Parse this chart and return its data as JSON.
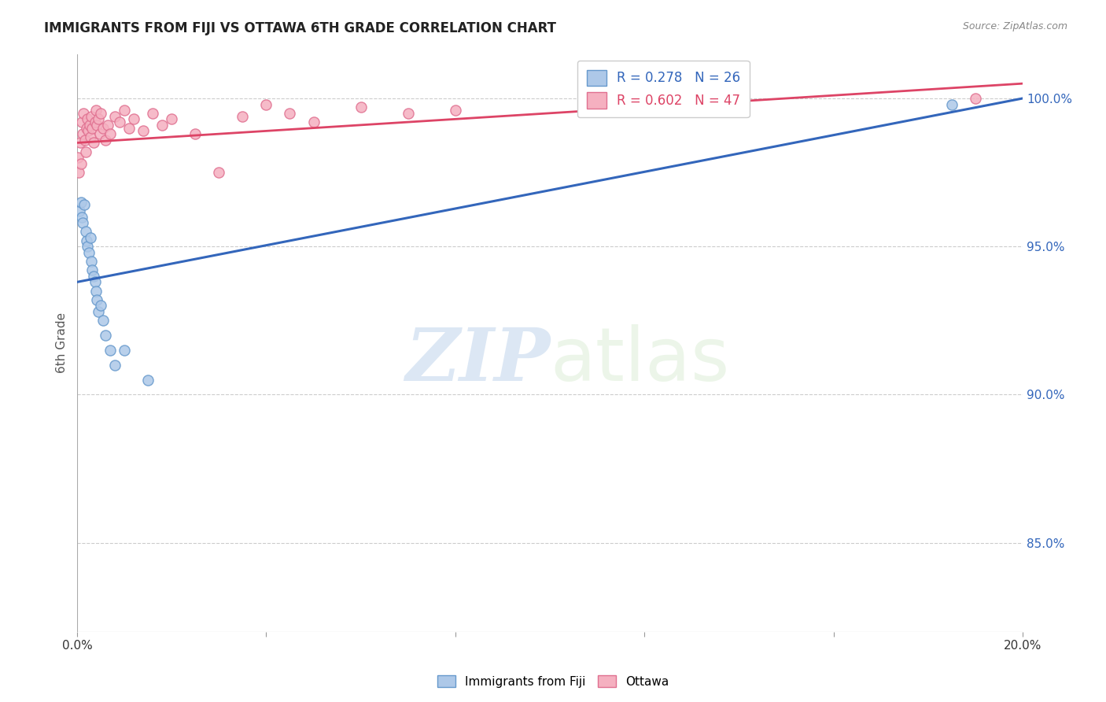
{
  "title": "IMMIGRANTS FROM FIJI VS OTTAWA 6TH GRADE CORRELATION CHART",
  "source": "Source: ZipAtlas.com",
  "ylabel": "6th Grade",
  "y_ticks": [
    100.0,
    95.0,
    90.0,
    85.0
  ],
  "y_tick_labels": [
    "100.0%",
    "95.0%",
    "90.0%",
    "85.0%"
  ],
  "xlim": [
    0.0,
    20.0
  ],
  "ylim": [
    82.0,
    101.5
  ],
  "fiji_R": 0.278,
  "fiji_N": 26,
  "ottawa_R": 0.602,
  "ottawa_N": 47,
  "fiji_color": "#adc8e8",
  "fiji_edge_color": "#6699cc",
  "ottawa_color": "#f5b0c0",
  "ottawa_edge_color": "#e07090",
  "fiji_line_color": "#3366bb",
  "ottawa_line_color": "#dd4466",
  "fiji_x": [
    0.05,
    0.08,
    0.1,
    0.12,
    0.15,
    0.18,
    0.2,
    0.22,
    0.25,
    0.28,
    0.3,
    0.32,
    0.35,
    0.38,
    0.4,
    0.42,
    0.45,
    0.5,
    0.55,
    0.6,
    0.7,
    0.8,
    1.0,
    1.5,
    11.0,
    18.5
  ],
  "fiji_y": [
    96.2,
    96.5,
    96.0,
    95.8,
    96.4,
    95.5,
    95.2,
    95.0,
    94.8,
    95.3,
    94.5,
    94.2,
    94.0,
    93.8,
    93.5,
    93.2,
    92.8,
    93.0,
    92.5,
    92.0,
    91.5,
    91.0,
    91.5,
    90.5,
    100.0,
    99.8
  ],
  "ottawa_x": [
    0.02,
    0.04,
    0.06,
    0.08,
    0.1,
    0.12,
    0.14,
    0.16,
    0.18,
    0.2,
    0.22,
    0.24,
    0.26,
    0.28,
    0.3,
    0.32,
    0.35,
    0.38,
    0.4,
    0.42,
    0.45,
    0.48,
    0.5,
    0.55,
    0.6,
    0.65,
    0.7,
    0.8,
    0.9,
    1.0,
    1.1,
    1.2,
    1.4,
    1.6,
    1.8,
    2.0,
    2.5,
    3.0,
    3.5,
    4.0,
    4.5,
    5.0,
    6.0,
    7.0,
    8.0,
    11.0,
    19.0
  ],
  "ottawa_y": [
    98.0,
    97.5,
    98.5,
    97.8,
    99.2,
    98.8,
    99.5,
    98.6,
    98.2,
    99.0,
    99.3,
    98.9,
    99.1,
    98.7,
    99.4,
    99.0,
    98.5,
    99.2,
    99.6,
    99.1,
    99.3,
    98.8,
    99.5,
    99.0,
    98.6,
    99.1,
    98.8,
    99.4,
    99.2,
    99.6,
    99.0,
    99.3,
    98.9,
    99.5,
    99.1,
    99.3,
    98.8,
    97.5,
    99.4,
    99.8,
    99.5,
    99.2,
    99.7,
    99.5,
    99.6,
    100.2,
    100.0
  ],
  "watermark_zip": "ZIP",
  "watermark_atlas": "atlas",
  "marker_size": 90,
  "background_color": "#ffffff",
  "grid_color": "#cccccc",
  "fiji_line_x0": 0.0,
  "fiji_line_y0": 93.8,
  "fiji_line_x1": 20.0,
  "fiji_line_y1": 100.0,
  "ottawa_line_x0": 0.0,
  "ottawa_line_y0": 98.5,
  "ottawa_line_x1": 20.0,
  "ottawa_line_y1": 100.5
}
